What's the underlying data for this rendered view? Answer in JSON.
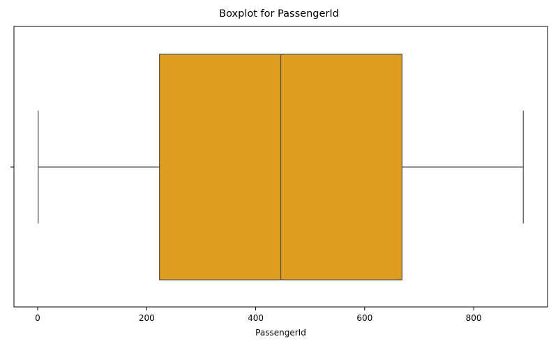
{
  "chart_data": {
    "type": "boxplot",
    "title": "Boxplot for PassengerId",
    "xlabel": "PassengerId",
    "ylabel": "",
    "orientation": "horizontal",
    "xlim": [
      -43.5,
      935.5
    ],
    "xticks": [
      0,
      200,
      400,
      600,
      800
    ],
    "box": {
      "min": 1,
      "q1": 223.5,
      "median": 446,
      "q3": 668.5,
      "max": 891
    },
    "box_color": "#e09e1f",
    "line_color": "#4d4d4d",
    "grid": false,
    "legend": "none"
  }
}
